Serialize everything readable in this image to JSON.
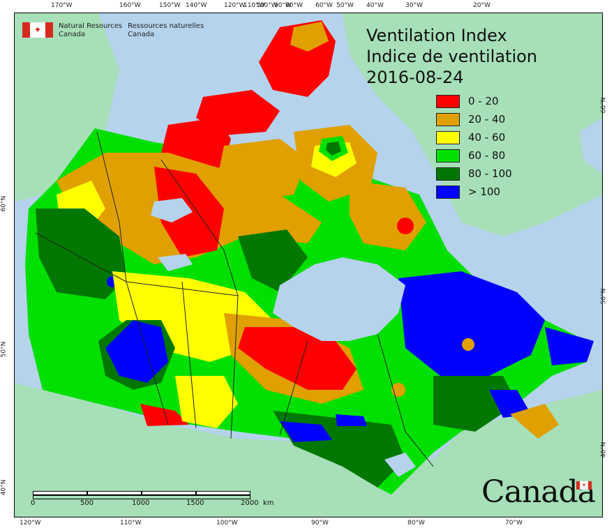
{
  "header": {
    "org_en_line1": "Natural Resources",
    "org_en_line2": "Canada",
    "org_fr_line1": "Ressources naturelles",
    "org_fr_line2": "Canada",
    "flag_icon": "maple-leaf-flag-icon"
  },
  "title": {
    "line1": "Ventilation Index",
    "line2": "Indice de ventilation",
    "date": "2016-08-24"
  },
  "legend": [
    {
      "label": "0 - 20",
      "color": "#ff0000"
    },
    {
      "label": "20 - 40",
      "color": "#e0a000"
    },
    {
      "label": "40 - 60",
      "color": "#ffff00"
    },
    {
      "label": "60 - 80",
      "color": "#00e000"
    },
    {
      "label": "80 - 100",
      "color": "#007800"
    },
    {
      "label": "> 100",
      "color": "#0000ff"
    }
  ],
  "graticule": {
    "top": [
      "170°W",
      "160°W",
      "150°W",
      "140°W",
      "120°W",
      "110°W",
      "100°W",
      "90°W",
      "80°W",
      "60°W",
      "50°W",
      "40°W",
      "30°W",
      "20°W"
    ],
    "bottom": [
      "120°W",
      "110°W",
      "100°W",
      "90°W",
      "80°W",
      "70°W"
    ],
    "left": [
      "60°N",
      "50°N",
      "40°N"
    ],
    "right": [
      "60°N",
      "50°N",
      "40°N"
    ]
  },
  "scale": {
    "labels": [
      "0",
      "500",
      "1000",
      "1500",
      "2000"
    ],
    "unit": "km"
  },
  "wordmark": "Canada",
  "colors": {
    "ocean": "#b5d3ec",
    "land_outside": "#a6dfb8",
    "lake": "#b5d3ec"
  }
}
